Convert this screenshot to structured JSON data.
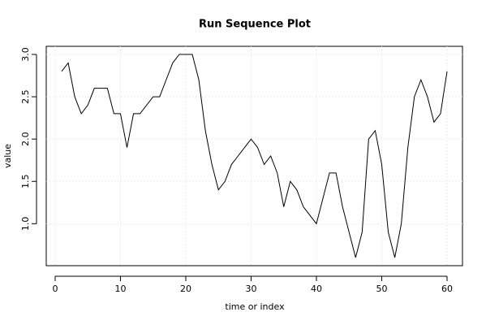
{
  "chart_data": {
    "type": "line",
    "title": "Run Sequence Plot",
    "x_label": "time or index",
    "y_label": "value",
    "x": [
      1,
      2,
      3,
      4,
      5,
      6,
      7,
      8,
      9,
      10,
      11,
      12,
      13,
      14,
      15,
      16,
      17,
      18,
      19,
      20,
      21,
      22,
      23,
      24,
      25,
      26,
      27,
      28,
      29,
      30,
      31,
      32,
      33,
      34,
      35,
      36,
      37,
      38,
      39,
      40,
      41,
      42,
      43,
      44,
      45,
      46,
      47,
      48,
      49,
      50,
      51,
      52,
      53,
      54,
      55,
      56,
      57,
      58,
      59,
      60
    ],
    "series": [
      {
        "color": "#000000",
        "values": [
          2.8,
          2.9,
          2.5,
          2.3,
          2.4,
          2.6,
          2.6,
          2.6,
          2.3,
          2.3,
          1.9,
          2.3,
          2.3,
          2.4,
          2.5,
          2.5,
          2.7,
          2.9,
          3.0,
          3.0,
          3.0,
          2.7,
          2.1,
          1.7,
          1.4,
          1.5,
          1.7,
          1.8,
          1.9,
          2.0,
          1.9,
          1.7,
          1.8,
          1.6,
          1.2,
          1.5,
          1.4,
          1.2,
          1.1,
          1.0,
          1.3,
          1.6,
          1.6,
          1.2,
          0.9,
          0.6,
          0.9,
          2.0,
          2.1,
          1.7,
          0.9,
          0.6,
          1.0,
          1.9,
          2.5,
          2.7,
          2.5,
          2.2,
          2.3,
          2.8
        ]
      }
    ],
    "xlim": [
      -1.36,
      62.36
    ],
    "ylim": [
      0.504,
      3.096
    ],
    "xticks": [
      0,
      10,
      20,
      30,
      40,
      50,
      60
    ],
    "yticks": [
      {
        "value": 1,
        "label": "1.0"
      },
      1.5,
      {
        "value": 2,
        "label": "2.0"
      },
      2.5,
      {
        "value": 3,
        "label": "3.0"
      }
    ],
    "grid": true
  }
}
